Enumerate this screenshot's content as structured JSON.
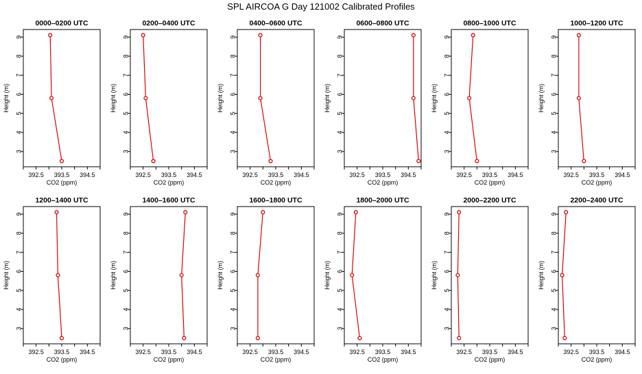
{
  "figure": {
    "title": "SPL AIRCOA G  Day 121002  Calibrated Profiles"
  },
  "style": {
    "series_color": "#dd0000",
    "axis_color": "#000000"
  },
  "chart_data": [
    {
      "type": "line",
      "title": "0000–0200 UTC",
      "xlabel": "CO2 (ppm)",
      "ylabel": "Height (m)",
      "xlim": [
        392.0,
        395.0
      ],
      "ylim": [
        2.2,
        9.4
      ],
      "xticks": [
        "392.5",
        "393.5",
        "394.5"
      ],
      "yticks": [
        "3",
        "4",
        "5",
        "6",
        "7",
        "8",
        "9"
      ],
      "series": [
        {
          "x": [
            393.5,
            393.1,
            393.05
          ],
          "y": [
            2.5,
            5.8,
            9.1
          ]
        }
      ]
    },
    {
      "type": "line",
      "title": "0200–0400 UTC",
      "xlabel": "CO2 (ppm)",
      "ylabel": "Height (m)",
      "xlim": [
        392.0,
        395.0
      ],
      "ylim": [
        2.2,
        9.4
      ],
      "xticks": [
        "392.5",
        "393.5",
        "394.5"
      ],
      "yticks": [
        "3",
        "4",
        "5",
        "6",
        "7",
        "8",
        "9"
      ],
      "series": [
        {
          "x": [
            392.9,
            392.6,
            392.5
          ],
          "y": [
            2.5,
            5.8,
            9.1
          ]
        }
      ]
    },
    {
      "type": "line",
      "title": "0400–0600 UTC",
      "xlabel": "CO2 (ppm)",
      "ylabel": "Height (m)",
      "xlim": [
        392.0,
        395.0
      ],
      "ylim": [
        2.2,
        9.4
      ],
      "xticks": [
        "392.5",
        "393.5",
        "394.5"
      ],
      "yticks": [
        "3",
        "4",
        "5",
        "6",
        "7",
        "8",
        "9"
      ],
      "series": [
        {
          "x": [
            393.3,
            392.9,
            392.9
          ],
          "y": [
            2.5,
            5.8,
            9.1
          ]
        }
      ]
    },
    {
      "type": "line",
      "title": "0600–0800 UTC",
      "xlabel": "CO2 (ppm)",
      "ylabel": "Height (m)",
      "xlim": [
        392.0,
        395.0
      ],
      "ylim": [
        2.2,
        9.4
      ],
      "xticks": [
        "392.5",
        "393.5",
        "394.5"
      ],
      "yticks": [
        "3",
        "4",
        "5",
        "6",
        "7",
        "8",
        "9"
      ],
      "series": [
        {
          "x": [
            394.9,
            394.7,
            394.7
          ],
          "y": [
            2.5,
            5.8,
            9.1
          ]
        }
      ]
    },
    {
      "type": "line",
      "title": "0800–1000 UTC",
      "xlabel": "CO2 (ppm)",
      "ylabel": "Height (m)",
      "xlim": [
        392.0,
        395.0
      ],
      "ylim": [
        2.2,
        9.4
      ],
      "xticks": [
        "392.5",
        "393.5",
        "394.5"
      ],
      "yticks": [
        "3",
        "4",
        "5",
        "6",
        "7",
        "8",
        "9"
      ],
      "series": [
        {
          "x": [
            393.0,
            392.7,
            392.85
          ],
          "y": [
            2.5,
            5.8,
            9.1
          ]
        }
      ]
    },
    {
      "type": "line",
      "title": "1000–1200 UTC",
      "xlabel": "CO2 (ppm)",
      "ylabel": "Height (m)",
      "xlim": [
        392.0,
        395.0
      ],
      "ylim": [
        2.2,
        9.4
      ],
      "xticks": [
        "392.5",
        "393.5",
        "394.5"
      ],
      "yticks": [
        "3",
        "4",
        "5",
        "6",
        "7",
        "8",
        "9"
      ],
      "series": [
        {
          "x": [
            393.0,
            392.8,
            392.8
          ],
          "y": [
            2.5,
            5.8,
            9.1
          ]
        }
      ]
    },
    {
      "type": "line",
      "title": "1200–1400 UTC",
      "xlabel": "CO2 (ppm)",
      "ylabel": "Height (m)",
      "xlim": [
        392.0,
        395.0
      ],
      "ylim": [
        2.2,
        9.4
      ],
      "xticks": [
        "392.5",
        "393.5",
        "394.5"
      ],
      "yticks": [
        "3",
        "4",
        "5",
        "6",
        "7",
        "8",
        "9"
      ],
      "series": [
        {
          "x": [
            393.5,
            393.35,
            393.3
          ],
          "y": [
            2.5,
            5.8,
            9.1
          ]
        }
      ]
    },
    {
      "type": "line",
      "title": "1400–1600 UTC",
      "xlabel": "CO2 (ppm)",
      "ylabel": "Height (m)",
      "xlim": [
        392.0,
        395.0
      ],
      "ylim": [
        2.2,
        9.4
      ],
      "xticks": [
        "392.5",
        "393.5",
        "394.5"
      ],
      "yticks": [
        "3",
        "4",
        "5",
        "6",
        "7",
        "8",
        "9"
      ],
      "series": [
        {
          "x": [
            394.1,
            394.0,
            394.15
          ],
          "y": [
            2.5,
            5.8,
            9.1
          ]
        }
      ]
    },
    {
      "type": "line",
      "title": "1600–1800 UTC",
      "xlabel": "CO2 (ppm)",
      "ylabel": "Height (m)",
      "xlim": [
        392.0,
        395.0
      ],
      "ylim": [
        2.2,
        9.4
      ],
      "xticks": [
        "392.5",
        "393.5",
        "394.5"
      ],
      "yticks": [
        "3",
        "4",
        "5",
        "6",
        "7",
        "8",
        "9"
      ],
      "series": [
        {
          "x": [
            392.8,
            392.8,
            393.0
          ],
          "y": [
            2.5,
            5.8,
            9.1
          ]
        }
      ]
    },
    {
      "type": "line",
      "title": "1800–2000 UTC",
      "xlabel": "CO2 (ppm)",
      "ylabel": "Height (m)",
      "xlim": [
        392.0,
        395.0
      ],
      "ylim": [
        2.2,
        9.4
      ],
      "xticks": [
        "392.5",
        "393.5",
        "394.5"
      ],
      "yticks": [
        "3",
        "4",
        "5",
        "6",
        "7",
        "8",
        "9"
      ],
      "series": [
        {
          "x": [
            392.6,
            392.3,
            392.45
          ],
          "y": [
            2.5,
            5.8,
            9.1
          ]
        }
      ]
    },
    {
      "type": "line",
      "title": "2000–2200 UTC",
      "xlabel": "CO2 (ppm)",
      "ylabel": "Height (m)",
      "xlim": [
        392.0,
        395.0
      ],
      "ylim": [
        2.2,
        9.4
      ],
      "xticks": [
        "392.5",
        "393.5",
        "394.5"
      ],
      "yticks": [
        "3",
        "4",
        "5",
        "6",
        "7",
        "8",
        "9"
      ],
      "series": [
        {
          "x": [
            392.3,
            392.25,
            392.3
          ],
          "y": [
            2.5,
            5.8,
            9.1
          ]
        }
      ]
    },
    {
      "type": "line",
      "title": "2200–2400 UTC",
      "xlabel": "CO2 (ppm)",
      "ylabel": "Height (m)",
      "xlim": [
        392.0,
        395.0
      ],
      "ylim": [
        2.2,
        9.4
      ],
      "xticks": [
        "392.5",
        "393.5",
        "394.5"
      ],
      "yticks": [
        "3",
        "4",
        "5",
        "6",
        "7",
        "8",
        "9"
      ],
      "series": [
        {
          "x": [
            392.25,
            392.15,
            392.3
          ],
          "y": [
            2.5,
            5.8,
            9.1
          ]
        }
      ]
    }
  ]
}
